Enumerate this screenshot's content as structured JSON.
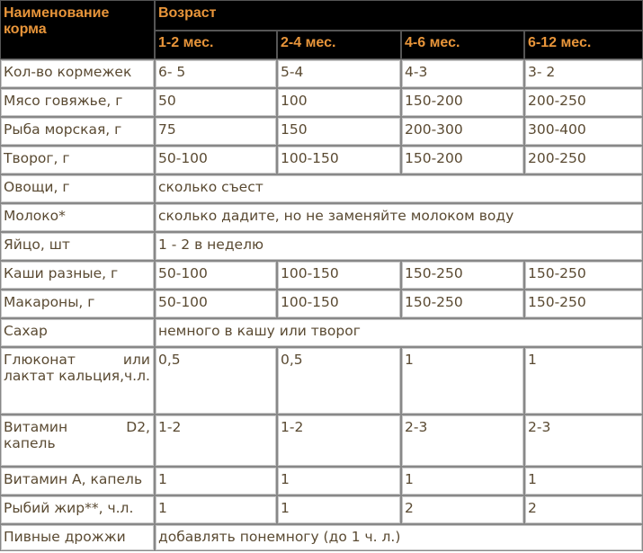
{
  "header": {
    "name_col": "Наименование корма",
    "age_group": "Возраст",
    "ages": [
      "1-2 мес.",
      "2-4 мес.",
      "4-6 мес.",
      "6-12 мес."
    ]
  },
  "rows": [
    {
      "label": "Кол-во кормежек",
      "values": [
        "6- 5",
        "5-4",
        "4-3",
        "3- 2"
      ]
    },
    {
      "label": "Мясо говяжье, г",
      "values": [
        "50",
        "100",
        "150-200",
        "200-250"
      ]
    },
    {
      "label": "Рыба морская, г",
      "values": [
        "75",
        "150",
        "200-300",
        "300-400"
      ]
    },
    {
      "label": "Творог, г",
      "values": [
        "50-100",
        "100-150",
        "150-200",
        "200-250"
      ]
    },
    {
      "label": "Овощи, г",
      "span": "сколько съест"
    },
    {
      "label": "Молоко*",
      "span": "сколько дадите, но не заменяйте молоком воду"
    },
    {
      "label": "Яйцо, шт",
      "span": "1 - 2 в неделю"
    },
    {
      "label": "Каши разные, г",
      "values": [
        "50-100",
        "100-150",
        "150-250",
        "150-250"
      ]
    },
    {
      "label": "Макароны, г",
      "values": [
        "50-100",
        "100-150",
        "150-250",
        "150-250"
      ]
    },
    {
      "label": "Сахар",
      "span": "немного в кашу или творог"
    },
    {
      "label": "Глюконат или лактат кальция,ч.л.",
      "values": [
        "0,5",
        "0,5",
        "1",
        "1"
      ],
      "tall": "tall3"
    },
    {
      "label": "Витамин D2, капель",
      "values": [
        "1-2",
        "1-2",
        "2-3",
        "2-3"
      ],
      "tall": "tall2"
    },
    {
      "label": "Витамин А, капель",
      "values": [
        "1",
        "1",
        "1",
        "1"
      ]
    },
    {
      "label": "Рыбий жир**, ч.л.",
      "values": [
        "1",
        "1",
        "2",
        "2"
      ]
    },
    {
      "label": "Пивные дрожжи",
      "span": "добавлять понемногу (до 1 ч. л.)",
      "tall": "last"
    }
  ]
}
